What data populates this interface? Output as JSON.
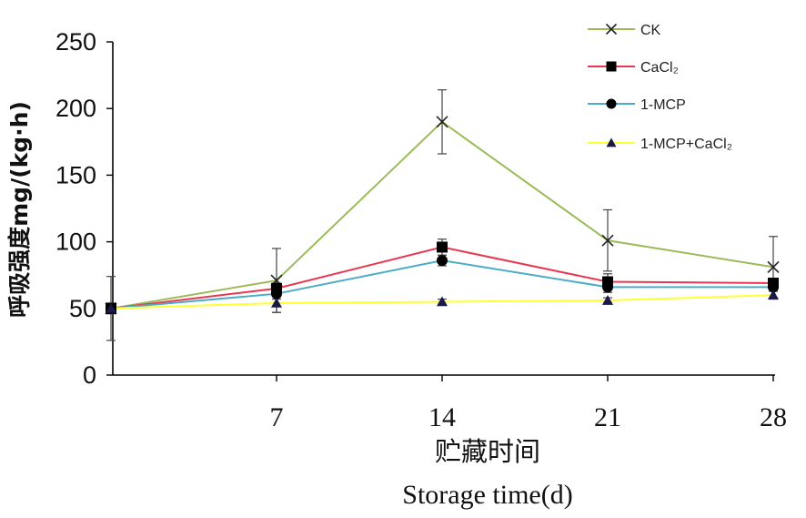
{
  "chart_data": {
    "type": "line",
    "x": [
      0,
      7,
      14,
      21,
      28
    ],
    "x_tick_labels": [
      "7",
      "14",
      "21",
      "28"
    ],
    "y_tick_labels": [
      "0",
      "50",
      "100",
      "150",
      "200",
      "250"
    ],
    "ylim": [
      0,
      250
    ],
    "xlim": [
      0,
      28
    ],
    "ylabel": "呼吸强度mg/(kg·h)",
    "xlabel_cn": "贮藏时间",
    "xlabel_en": "Storage time(d)",
    "legend_position": "top-right",
    "grid": false,
    "series": [
      {
        "name": "CK",
        "color": "#9bbb59",
        "marker": "x",
        "values": [
          50,
          71,
          190,
          101,
          81
        ],
        "errors": [
          24,
          24,
          24,
          23,
          23
        ]
      },
      {
        "name": "CaCl₂",
        "color": "#e8384f",
        "marker": "square",
        "values": [
          50,
          65,
          96,
          70,
          69
        ],
        "errors": [
          4,
          4,
          6,
          6,
          3
        ]
      },
      {
        "name": "1-MCP",
        "color": "#4bacc6",
        "marker": "circle",
        "values": [
          50,
          61,
          86,
          66,
          66
        ],
        "errors": [
          4,
          4,
          4,
          4,
          3
        ]
      },
      {
        "name": "1-MCP+CaCl₂",
        "color": "#ffff33",
        "marker": "triangle",
        "values": [
          50,
          54,
          55,
          56,
          60
        ],
        "errors": [
          3,
          7,
          2,
          2,
          3
        ]
      }
    ]
  }
}
